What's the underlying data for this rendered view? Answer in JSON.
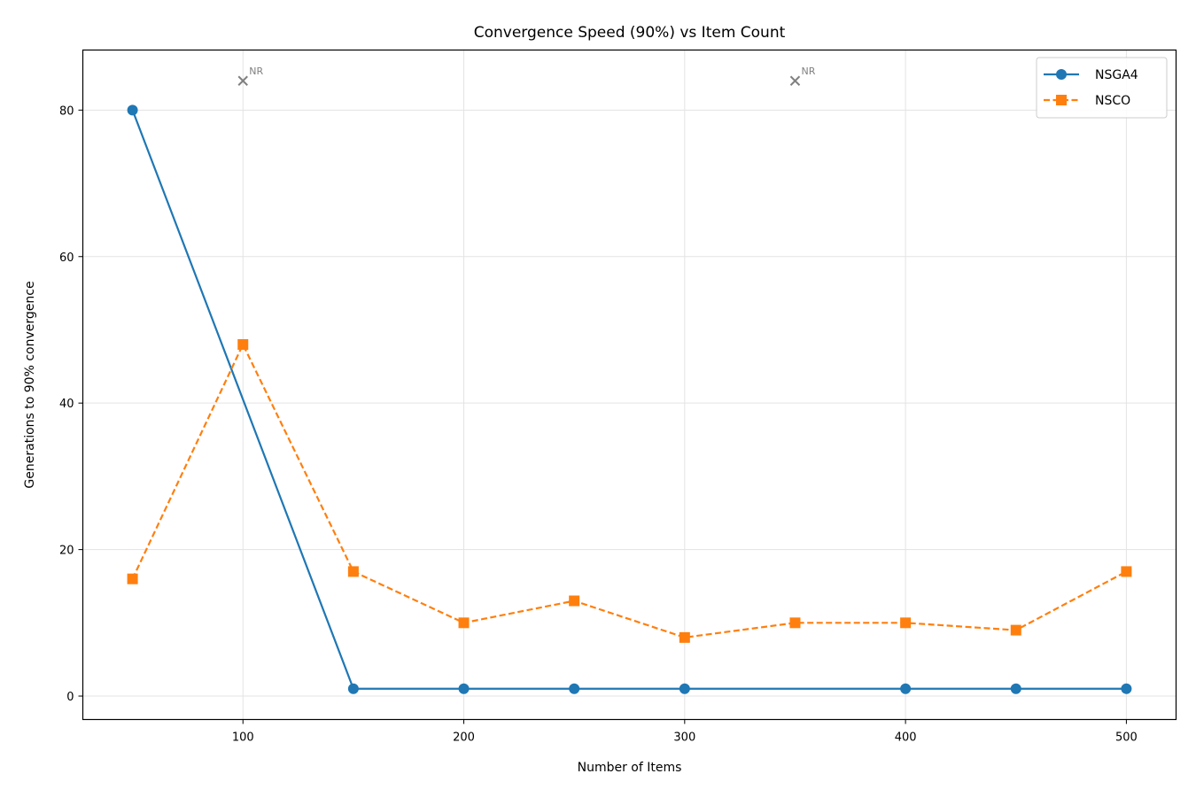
{
  "chart_data": {
    "type": "line",
    "title": "Convergence Speed (90%) vs Item Count",
    "xlabel": "Number of Items",
    "ylabel": "Generations to 90% convergence",
    "xlim": [
      27.5,
      522.5
    ],
    "ylim": [
      -3.2,
      88.2
    ],
    "xticks": [
      100,
      200,
      300,
      400,
      500
    ],
    "yticks": [
      0,
      20,
      40,
      60,
      80
    ],
    "grid": true,
    "legend_position": "top-right",
    "series": [
      {
        "name": "NSGA4",
        "color": "#1f77b4",
        "marker": "circle",
        "line_style": "solid",
        "x": [
          50,
          150,
          200,
          250,
          300,
          400,
          450,
          500
        ],
        "values": [
          80,
          1,
          1,
          1,
          1,
          1,
          1,
          1
        ]
      },
      {
        "name": "NSCO",
        "color": "#ff7f0e",
        "marker": "square",
        "line_style": "dashed",
        "x": [
          50,
          100,
          150,
          200,
          250,
          300,
          350,
          400,
          450,
          500
        ],
        "values": [
          16,
          48,
          17,
          10,
          13,
          8,
          10,
          10,
          9,
          17
        ]
      }
    ],
    "annotations": [
      {
        "text": "NR",
        "x": 100,
        "y": 84,
        "marker": "x",
        "color": "#808080"
      },
      {
        "text": "NR",
        "x": 350,
        "y": 84,
        "marker": "x",
        "color": "#808080"
      }
    ]
  }
}
